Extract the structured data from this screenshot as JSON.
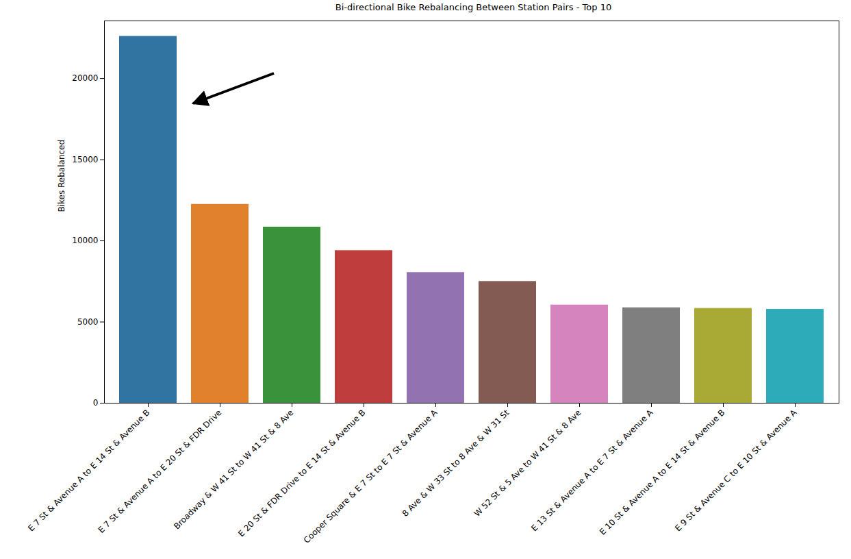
{
  "chart_data": {
    "type": "bar",
    "title": "Bi-directional Bike Rebalancing Between Station Pairs - Top 10",
    "y_label": "Bikes Rebalanced",
    "categories": [
      "E 7 St & Avenue A to E 14 St & Avenue B",
      "E 7 St & Avenue A to E 20 St & FDR Drive",
      "Broadway & W 41 St to W 41 St & 8 Ave",
      "E 20 St & FDR Drive to E 14 St & Avenue B",
      "Cooper Square & E 7 St to E 7 St & Avenue A",
      "8 Ave & W 33 St to 8 Ave & W 31 St",
      "W 52 St & 5 Ave to W 41 St & 8 Ave",
      "E 13 St & Avenue A to E 7 St & Avenue A",
      "E 10 St & Avenue A to E 14 St & Avenue B",
      "E 9 St & Avenue C to E 10 St & Avenue A"
    ],
    "values": [
      22600,
      12250,
      10850,
      9400,
      8050,
      7500,
      6050,
      5880,
      5840,
      5780
    ],
    "colors": [
      "#3274a1",
      "#e1812c",
      "#3a923a",
      "#c03d3e",
      "#9372b2",
      "#845b53",
      "#d684bd",
      "#7f7f7f",
      "#a9aa35",
      "#2eabb8"
    ],
    "ylim": [
      0,
      23550
    ],
    "yticks": [
      0,
      5000,
      10000,
      15000,
      20000
    ],
    "grid": false
  }
}
